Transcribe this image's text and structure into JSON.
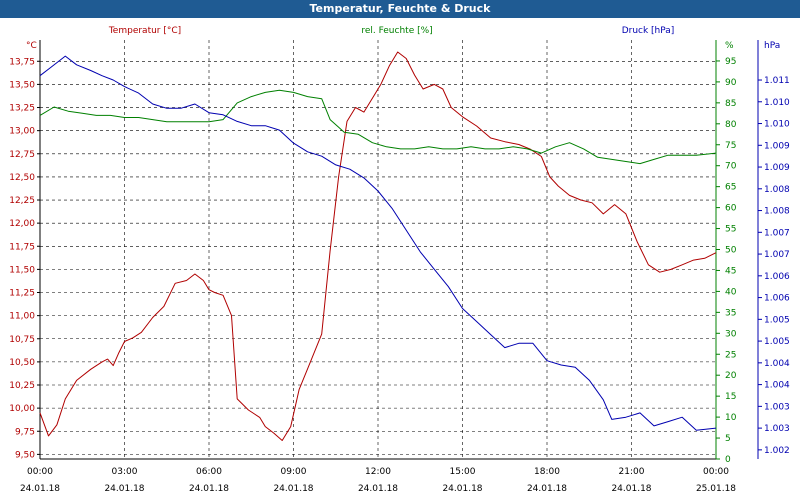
{
  "title": "Temperatur, Feuchte & Druck",
  "chart_data": {
    "type": "line",
    "title": "Temperatur, Feuchte & Druck",
    "colors": {
      "temperature": "#b00000",
      "humidity": "#008000",
      "pressure": "#0000b0",
      "axis": "#000000",
      "titlebar": "#1f5b93"
    },
    "xlabel": "",
    "x_ticks": [
      {
        "time": "00:00",
        "date": "24.01.18"
      },
      {
        "time": "03:00",
        "date": "24.01.18"
      },
      {
        "time": "06:00",
        "date": "24.01.18"
      },
      {
        "time": "09:00",
        "date": "24.01.18"
      },
      {
        "time": "12:00",
        "date": "24.01.18"
      },
      {
        "time": "15:00",
        "date": "24.01.18"
      },
      {
        "time": "18:00",
        "date": "24.01.18"
      },
      {
        "time": "21:00",
        "date": "24.01.18"
      },
      {
        "time": "00:00",
        "date": "25.01.18"
      }
    ],
    "xlim": [
      0,
      24
    ],
    "axes": {
      "temperature": {
        "unit": "°C",
        "legend": "Temperatur [°C]",
        "ylim": [
          9.45,
          13.98
        ],
        "ticks": [
          "9,50",
          "9,75",
          "10,00",
          "10,25",
          "10,50",
          "10,75",
          "11,00",
          "11,25",
          "11,50",
          "11,75",
          "12,00",
          "12,25",
          "12,50",
          "12,75",
          "13,00",
          "13,25",
          "13,50",
          "13,75"
        ],
        "tick_values": [
          9.5,
          9.75,
          10.0,
          10.25,
          10.5,
          10.75,
          11.0,
          11.25,
          11.5,
          11.75,
          12.0,
          12.25,
          12.5,
          12.75,
          13.0,
          13.25,
          13.5,
          13.75
        ]
      },
      "humidity": {
        "unit": "%",
        "legend": "rel. Feuchte [%]",
        "ylim": [
          0,
          100
        ],
        "ticks": [
          "0",
          "5",
          "10",
          "15",
          "20",
          "25",
          "30",
          "35",
          "40",
          "45",
          "50",
          "55",
          "60",
          "65",
          "70",
          "75",
          "80",
          "85",
          "90",
          "95"
        ],
        "tick_values": [
          0,
          5,
          10,
          15,
          20,
          25,
          30,
          35,
          40,
          45,
          50,
          55,
          60,
          65,
          70,
          75,
          80,
          85,
          90,
          95
        ]
      },
      "pressure": {
        "unit": "hPa",
        "legend": "Druck [hPa]",
        "ylim": [
          1001.79,
          1011.42
        ],
        "ticks": [
          "1.002",
          "1.003",
          "1.003",
          "1.004",
          "1.004",
          "1.005",
          "1.005",
          "1.006",
          "1.006",
          "1.007",
          "1.007",
          "1.008",
          "1.008",
          "1.009",
          "1.009",
          "1.010",
          "1.010",
          "1.011"
        ],
        "tick_values": [
          1002.0,
          1002.5,
          1003.0,
          1003.5,
          1004.0,
          1004.5,
          1005.0,
          1005.5,
          1006.0,
          1006.5,
          1007.0,
          1007.5,
          1008.0,
          1008.5,
          1009.0,
          1009.5,
          1010.0,
          1010.5
        ]
      }
    },
    "series": [
      {
        "name": "Temperatur [°C]",
        "axis": "temperature",
        "color": "#b00000",
        "points": [
          [
            0,
            9.95
          ],
          [
            0.3,
            9.7
          ],
          [
            0.6,
            9.82
          ],
          [
            0.9,
            10.1
          ],
          [
            1.3,
            10.3
          ],
          [
            1.8,
            10.42
          ],
          [
            2.2,
            10.5
          ],
          [
            2.4,
            10.53
          ],
          [
            2.6,
            10.46
          ],
          [
            2.8,
            10.6
          ],
          [
            3.0,
            10.72
          ],
          [
            3.3,
            10.76
          ],
          [
            3.6,
            10.82
          ],
          [
            4.0,
            10.98
          ],
          [
            4.4,
            11.1
          ],
          [
            4.8,
            11.35
          ],
          [
            5.2,
            11.38
          ],
          [
            5.5,
            11.45
          ],
          [
            5.8,
            11.38
          ],
          [
            6.0,
            11.28
          ],
          [
            6.2,
            11.25
          ],
          [
            6.5,
            11.22
          ],
          [
            6.8,
            11.0
          ],
          [
            7.0,
            10.1
          ],
          [
            7.4,
            9.98
          ],
          [
            7.8,
            9.9
          ],
          [
            8.0,
            9.8
          ],
          [
            8.3,
            9.73
          ],
          [
            8.6,
            9.65
          ],
          [
            8.9,
            9.8
          ],
          [
            9.2,
            10.2
          ],
          [
            9.6,
            10.5
          ],
          [
            10.0,
            10.8
          ],
          [
            10.3,
            11.7
          ],
          [
            10.6,
            12.5
          ],
          [
            10.9,
            13.1
          ],
          [
            11.2,
            13.25
          ],
          [
            11.5,
            13.2
          ],
          [
            11.8,
            13.35
          ],
          [
            12.1,
            13.5
          ],
          [
            12.4,
            13.7
          ],
          [
            12.7,
            13.85
          ],
          [
            13.0,
            13.78
          ],
          [
            13.3,
            13.6
          ],
          [
            13.6,
            13.45
          ],
          [
            14.0,
            13.5
          ],
          [
            14.3,
            13.45
          ],
          [
            14.6,
            13.25
          ],
          [
            15.0,
            13.15
          ],
          [
            15.5,
            13.05
          ],
          [
            16.0,
            12.92
          ],
          [
            16.5,
            12.88
          ],
          [
            17.0,
            12.85
          ],
          [
            17.4,
            12.8
          ],
          [
            17.8,
            12.72
          ],
          [
            18.1,
            12.5
          ],
          [
            18.4,
            12.4
          ],
          [
            18.8,
            12.3
          ],
          [
            19.2,
            12.25
          ],
          [
            19.6,
            12.22
          ],
          [
            20.0,
            12.1
          ],
          [
            20.4,
            12.2
          ],
          [
            20.8,
            12.1
          ],
          [
            21.2,
            11.8
          ],
          [
            21.6,
            11.55
          ],
          [
            22.0,
            11.47
          ],
          [
            22.4,
            11.5
          ],
          [
            22.8,
            11.55
          ],
          [
            23.2,
            11.6
          ],
          [
            23.6,
            11.62
          ],
          [
            24.0,
            11.68
          ]
        ]
      },
      {
        "name": "rel. Feuchte [%]",
        "axis": "humidity",
        "color": "#008000",
        "points": [
          [
            0,
            82
          ],
          [
            0.5,
            84
          ],
          [
            1.0,
            83
          ],
          [
            1.5,
            82.5
          ],
          [
            2.0,
            82
          ],
          [
            2.5,
            82
          ],
          [
            3.0,
            81.5
          ],
          [
            3.5,
            81.5
          ],
          [
            4.0,
            81
          ],
          [
            4.5,
            80.5
          ],
          [
            5.0,
            80.5
          ],
          [
            5.5,
            80.5
          ],
          [
            6.0,
            80.5
          ],
          [
            6.5,
            81
          ],
          [
            7.0,
            85
          ],
          [
            7.5,
            86.5
          ],
          [
            8.0,
            87.5
          ],
          [
            8.5,
            88
          ],
          [
            9.0,
            87.5
          ],
          [
            9.5,
            86.5
          ],
          [
            10.0,
            86
          ],
          [
            10.3,
            81
          ],
          [
            10.8,
            78
          ],
          [
            11.3,
            77.5
          ],
          [
            11.8,
            75.5
          ],
          [
            12.3,
            74.5
          ],
          [
            12.8,
            74
          ],
          [
            13.3,
            74
          ],
          [
            13.8,
            74.5
          ],
          [
            14.3,
            74
          ],
          [
            14.8,
            74
          ],
          [
            15.3,
            74.5
          ],
          [
            15.8,
            74
          ],
          [
            16.3,
            74
          ],
          [
            16.8,
            74.5
          ],
          [
            17.3,
            74
          ],
          [
            17.8,
            73
          ],
          [
            18.3,
            74.5
          ],
          [
            18.8,
            75.5
          ],
          [
            19.3,
            74
          ],
          [
            19.8,
            72
          ],
          [
            20.3,
            71.5
          ],
          [
            20.8,
            71
          ],
          [
            21.3,
            70.5
          ],
          [
            21.8,
            71.5
          ],
          [
            22.3,
            72.5
          ],
          [
            22.8,
            72.5
          ],
          [
            23.3,
            72.5
          ],
          [
            24.0,
            73
          ]
        ]
      },
      {
        "name": "Druck [hPa]",
        "axis": "pressure",
        "color": "#0000b0",
        "points": [
          [
            0,
            1010.6
          ],
          [
            0.4,
            1010.8
          ],
          [
            0.9,
            1011.05
          ],
          [
            1.3,
            1010.85
          ],
          [
            1.8,
            1010.72
          ],
          [
            2.2,
            1010.6
          ],
          [
            2.6,
            1010.5
          ],
          [
            3.0,
            1010.35
          ],
          [
            3.5,
            1010.2
          ],
          [
            4.0,
            1009.95
          ],
          [
            4.5,
            1009.85
          ],
          [
            5.0,
            1009.85
          ],
          [
            5.5,
            1009.95
          ],
          [
            6.0,
            1009.75
          ],
          [
            6.5,
            1009.7
          ],
          [
            7.0,
            1009.55
          ],
          [
            7.5,
            1009.45
          ],
          [
            8.0,
            1009.45
          ],
          [
            8.5,
            1009.35
          ],
          [
            9.0,
            1009.05
          ],
          [
            9.5,
            1008.85
          ],
          [
            10.0,
            1008.75
          ],
          [
            10.5,
            1008.55
          ],
          [
            11.0,
            1008.45
          ],
          [
            11.5,
            1008.25
          ],
          [
            12.0,
            1007.95
          ],
          [
            12.5,
            1007.55
          ],
          [
            13.0,
            1007.05
          ],
          [
            13.5,
            1006.55
          ],
          [
            14.0,
            1006.15
          ],
          [
            14.5,
            1005.75
          ],
          [
            15.0,
            1005.25
          ],
          [
            15.5,
            1004.95
          ],
          [
            16.0,
            1004.65
          ],
          [
            16.5,
            1004.35
          ],
          [
            17.0,
            1004.45
          ],
          [
            17.5,
            1004.45
          ],
          [
            18.0,
            1004.05
          ],
          [
            18.5,
            1003.95
          ],
          [
            19.0,
            1003.9
          ],
          [
            19.5,
            1003.6
          ],
          [
            20.0,
            1003.15
          ],
          [
            20.3,
            1002.7
          ],
          [
            20.8,
            1002.75
          ],
          [
            21.3,
            1002.85
          ],
          [
            21.8,
            1002.55
          ],
          [
            22.3,
            1002.65
          ],
          [
            22.8,
            1002.75
          ],
          [
            23.3,
            1002.45
          ],
          [
            24.0,
            1002.5
          ]
        ]
      }
    ]
  }
}
